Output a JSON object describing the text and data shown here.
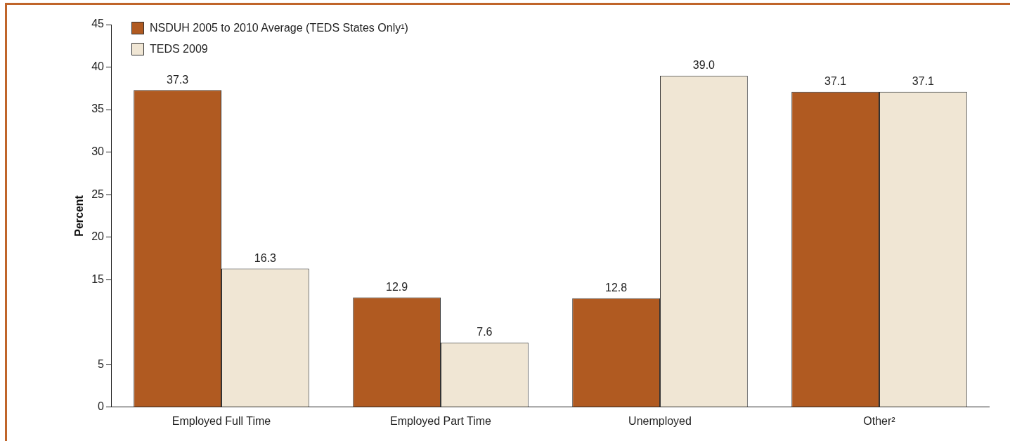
{
  "chart_data": {
    "type": "bar",
    "ylabel": "Percent",
    "categories": [
      "Employed Full Time",
      "Employed Part Time",
      "Unemployed",
      "Other²"
    ],
    "series": [
      {
        "name": "NSDUH 2005 to 2010 Average (TEDS States Only¹)",
        "color": "#b05a21",
        "values": [
          37.3,
          12.9,
          12.8,
          37.1
        ],
        "value_labels": [
          "37.3",
          "12.9",
          "12.8",
          "37.1"
        ]
      },
      {
        "name": "TEDS 2009",
        "color": "#f0e6d4",
        "values": [
          16.3,
          7.6,
          39.0,
          37.1
        ],
        "value_labels": [
          "16.3",
          "7.6",
          "39.0",
          "37.1"
        ]
      }
    ],
    "ylim": [
      0,
      45
    ],
    "yticks": [
      0,
      5,
      15,
      20,
      25,
      30,
      35,
      40,
      45
    ],
    "legend": "top left",
    "grid": false
  }
}
